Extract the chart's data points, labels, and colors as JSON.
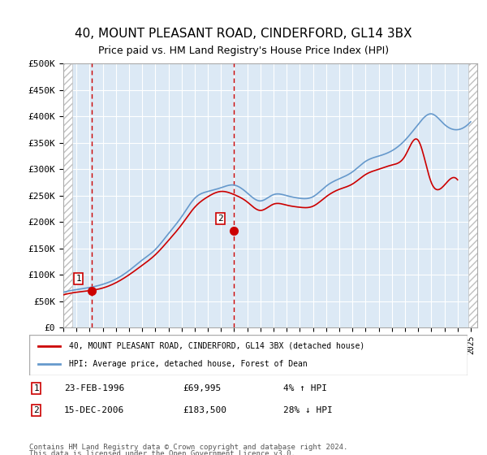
{
  "title": "40, MOUNT PLEASANT ROAD, CINDERFORD, GL14 3BX",
  "subtitle": "Price paid vs. HM Land Registry's House Price Index (HPI)",
  "title_fontsize": 11,
  "subtitle_fontsize": 10,
  "ylabel_ticks": [
    "£0",
    "£50K",
    "£100K",
    "£150K",
    "£200K",
    "£250K",
    "£300K",
    "£350K",
    "£400K",
    "£450K",
    "£500K"
  ],
  "ytick_values": [
    0,
    50000,
    100000,
    150000,
    200000,
    250000,
    300000,
    350000,
    400000,
    450000,
    500000
  ],
  "ylim": [
    0,
    500000
  ],
  "xlim_start": 1994.0,
  "xlim_end": 2025.5,
  "background_color": "#dce9f5",
  "plot_bg_color": "#dce9f5",
  "grid_color": "#ffffff",
  "hatch_color": "#c0c0c0",
  "red_line_color": "#cc0000",
  "blue_line_color": "#6699cc",
  "sale1_x": 1996.15,
  "sale1_y": 69995,
  "sale1_label": "1",
  "sale1_date": "23-FEB-1996",
  "sale1_price": "£69,995",
  "sale1_hpi": "4% ↑ HPI",
  "sale2_x": 2006.96,
  "sale2_y": 183500,
  "sale2_label": "2",
  "sale2_date": "15-DEC-2006",
  "sale2_price": "£183,500",
  "sale2_hpi": "28% ↓ HPI",
  "legend_line1": "40, MOUNT PLEASANT ROAD, CINDERFORD, GL14 3BX (detached house)",
  "legend_line2": "HPI: Average price, detached house, Forest of Dean",
  "footer1": "Contains HM Land Registry data © Crown copyright and database right 2024.",
  "footer2": "This data is licensed under the Open Government Licence v3.0.",
  "hpi_years": [
    1994,
    1995,
    1996,
    1997,
    1998,
    1999,
    2000,
    2001,
    2002,
    2003,
    2004,
    2005,
    2006,
    2007,
    2008,
    2009,
    2010,
    2011,
    2012,
    2013,
    2014,
    2015,
    2016,
    2017,
    2018,
    2019,
    2020,
    2021,
    2022,
    2023,
    2024,
    2025
  ],
  "hpi_values": [
    67000,
    72000,
    76000,
    82000,
    92000,
    108000,
    128000,
    148000,
    178000,
    210000,
    245000,
    258000,
    265000,
    270000,
    255000,
    240000,
    252000,
    250000,
    245000,
    248000,
    268000,
    282000,
    295000,
    315000,
    325000,
    335000,
    355000,
    385000,
    405000,
    385000,
    375000,
    390000
  ],
  "red_years": [
    1994,
    1995,
    1996,
    1997,
    1998,
    1999,
    2000,
    2001,
    2002,
    2003,
    2004,
    2005,
    2006,
    2007,
    2008,
    2009,
    2010,
    2011,
    2012,
    2013,
    2014,
    2015,
    2016,
    2017,
    2018,
    2019,
    2020,
    2021,
    2022,
    2023,
    2024
  ],
  "red_values": [
    62000,
    67000,
    70000,
    75000,
    85000,
    100000,
    118000,
    138000,
    165000,
    195000,
    228000,
    248000,
    258000,
    252000,
    238000,
    222000,
    234000,
    232000,
    228000,
    230000,
    248000,
    262000,
    272000,
    290000,
    300000,
    308000,
    325000,
    355000,
    275000,
    270000,
    280000
  ]
}
